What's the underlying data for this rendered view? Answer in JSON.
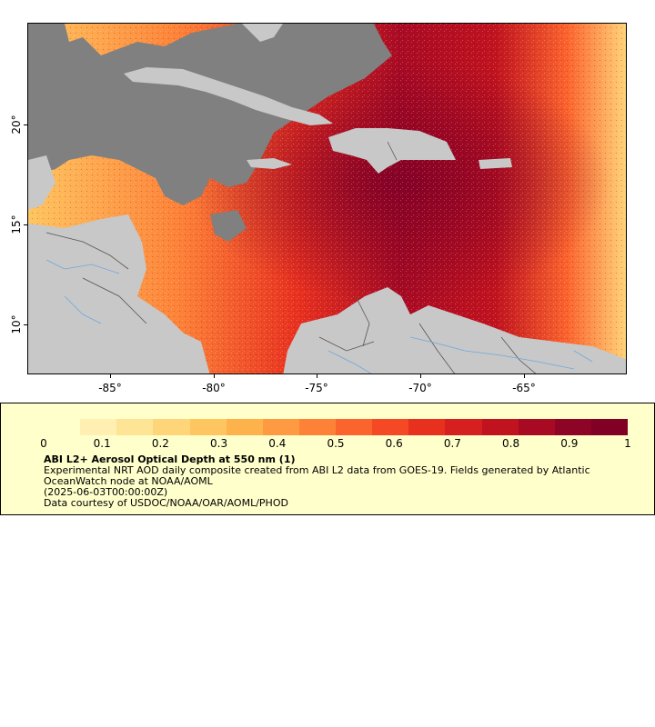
{
  "map": {
    "x_axis_labels": [
      "-85°",
      "-80°",
      "-75°",
      "-70°",
      "-65°"
    ],
    "y_axis_labels": [
      "20°",
      "15°",
      "10°"
    ],
    "land_color": "#c8c8c8",
    "nodata_color": "#808080",
    "border_color": "#555555",
    "river_color": "#6fa8dc"
  },
  "colorbar": {
    "labels": [
      "0",
      "0.1",
      "0.2",
      "0.3",
      "0.4",
      "0.5",
      "0.6",
      "0.7",
      "0.8",
      "0.9",
      "1"
    ],
    "colors": [
      "#ffffcc",
      "#ffefb0",
      "#fee596",
      "#fed679",
      "#fec560",
      "#feb24c",
      "#fd9a42",
      "#fd8238",
      "#fc642d",
      "#f54825",
      "#e8301f",
      "#d62020",
      "#c0121f",
      "#a80a24",
      "#8e0426",
      "#800026"
    ]
  },
  "legend": {
    "title": "ABI L2+ Aerosol Optical Depth at 550 nm (1)",
    "line1": "Experimental NRT AOD daily composite created from ABI L2 data from GOES-19. Fields generated by Atlantic OceanWatch node at NOAA/AOML",
    "line2": "(2025-06-03T00:00:00Z)",
    "line3": "Data courtesy of USDOC/NOAA/OAR/AOML/PHOD"
  }
}
